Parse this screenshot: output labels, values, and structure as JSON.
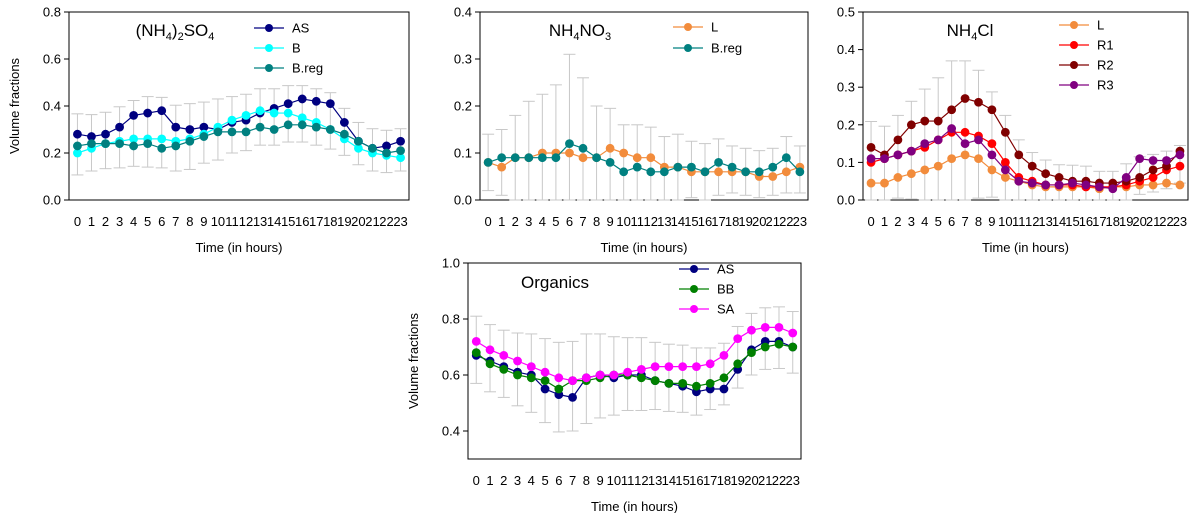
{
  "chart_data": [
    {
      "type": "line",
      "title": "(NH4)2SO4",
      "title_parts": [
        "(NH",
        "4",
        ")",
        "2",
        "SO",
        "4"
      ],
      "xlabel": "Time (in hours)",
      "ylabel": "Volume fractions",
      "x": [
        0,
        1,
        2,
        3,
        4,
        5,
        6,
        7,
        8,
        9,
        10,
        11,
        12,
        13,
        14,
        15,
        16,
        17,
        18,
        19,
        20,
        21,
        22,
        23
      ],
      "x_tick_labels": [
        "0",
        "1",
        "2",
        "3",
        "4",
        "5",
        "6",
        "7",
        "8",
        "9",
        "10",
        "11",
        "12",
        "13",
        "14",
        "15",
        "16",
        "17",
        "18",
        "19",
        "20",
        "21",
        "22",
        "23"
      ],
      "y_ticks": [
        0.0,
        0.2,
        0.4,
        0.6,
        0.8
      ],
      "y_tick_labels": [
        "0.0",
        "0.2",
        "0.4",
        "0.6",
        "0.8"
      ],
      "ylim": [
        0,
        0.8
      ],
      "legend_position": "top-right",
      "series": [
        {
          "name": "AS",
          "color": "#000080",
          "values": [
            0.28,
            0.27,
            0.28,
            0.31,
            0.36,
            0.37,
            0.38,
            0.31,
            0.3,
            0.31,
            0.3,
            0.33,
            0.34,
            0.37,
            0.39,
            0.41,
            0.43,
            0.42,
            0.41,
            0.33,
            0.25,
            0.22,
            0.23,
            0.25
          ]
        },
        {
          "name": "B",
          "color": "#00FFFF",
          "values": [
            0.2,
            0.22,
            0.24,
            0.25,
            0.26,
            0.26,
            0.26,
            0.25,
            0.26,
            0.28,
            0.31,
            0.34,
            0.36,
            0.38,
            0.37,
            0.37,
            0.35,
            0.33,
            0.3,
            0.26,
            0.22,
            0.2,
            0.19,
            0.18
          ]
        },
        {
          "name": "B.reg",
          "color": "#008080",
          "values": [
            0.23,
            0.24,
            0.24,
            0.24,
            0.23,
            0.24,
            0.22,
            0.23,
            0.25,
            0.27,
            0.29,
            0.29,
            0.29,
            0.31,
            0.3,
            0.32,
            0.32,
            0.31,
            0.3,
            0.28,
            0.25,
            0.22,
            0.2,
            0.21
          ]
        }
      ],
      "error": [
        0.13,
        0.12,
        0.12,
        0.13,
        0.14,
        0.15,
        0.15,
        0.14,
        0.14,
        0.13,
        0.13,
        0.12,
        0.12,
        0.12,
        0.12,
        0.12,
        0.12,
        0.12,
        0.12,
        0.1,
        0.09,
        0.09,
        0.09,
        0.09
      ]
    },
    {
      "type": "line",
      "title": "NH4NO3",
      "title_parts": [
        "NH",
        "4",
        "NO",
        "3"
      ],
      "xlabel": "Time (in hours)",
      "ylabel": "",
      "x": [
        0,
        1,
        2,
        3,
        4,
        5,
        6,
        7,
        8,
        9,
        10,
        11,
        12,
        13,
        14,
        15,
        16,
        17,
        18,
        19,
        20,
        21,
        22,
        23
      ],
      "x_tick_labels": [
        "0",
        "1",
        "2",
        "3",
        "4",
        "5",
        "6",
        "7",
        "8",
        "9",
        "10",
        "11",
        "12",
        "13",
        "14",
        "15",
        "16",
        "17",
        "18",
        "19",
        "20",
        "21",
        "22",
        "23"
      ],
      "y_ticks": [
        0.0,
        0.1,
        0.2,
        0.3,
        0.4
      ],
      "y_tick_labels": [
        "0.0",
        "0.1",
        "0.2",
        "0.3",
        "0.4"
      ],
      "ylim": [
        0,
        0.4
      ],
      "legend_position": "top-right",
      "series": [
        {
          "name": "L",
          "color": "#F28C3C",
          "values": [
            0.08,
            0.07,
            0.09,
            0.09,
            0.1,
            0.1,
            0.1,
            0.09,
            0.09,
            0.11,
            0.1,
            0.09,
            0.09,
            0.07,
            0.07,
            0.06,
            0.06,
            0.06,
            0.06,
            0.06,
            0.05,
            0.05,
            0.06,
            0.07
          ]
        },
        {
          "name": "B.reg",
          "color": "#008080",
          "values": [
            0.08,
            0.09,
            0.09,
            0.09,
            0.09,
            0.09,
            0.12,
            0.11,
            0.09,
            0.08,
            0.06,
            0.07,
            0.06,
            0.06,
            0.07,
            0.07,
            0.06,
            0.08,
            0.07,
            0.06,
            0.06,
            0.07,
            0.09,
            0.06
          ]
        }
      ],
      "error": [
        0.06,
        0.07,
        0.09,
        0.12,
        0.13,
        0.15,
        0.2,
        0.16,
        0.11,
        0.1,
        0.08,
        0.08,
        0.08,
        0.07,
        0.07,
        0.06,
        0.06,
        0.06,
        0.05,
        0.05,
        0.05,
        0.05,
        0.06,
        0.05
      ]
    },
    {
      "type": "line",
      "title": "NH4Cl",
      "title_parts": [
        "NH",
        "4",
        "Cl",
        ""
      ],
      "xlabel": "Time (in hours)",
      "ylabel": "",
      "x": [
        0,
        1,
        2,
        3,
        4,
        5,
        6,
        7,
        8,
        9,
        10,
        11,
        12,
        13,
        14,
        15,
        16,
        17,
        18,
        19,
        20,
        21,
        22,
        23
      ],
      "x_tick_labels": [
        "0",
        "1",
        "2",
        "3",
        "4",
        "5",
        "6",
        "7",
        "8",
        "9",
        "10",
        "11",
        "12",
        "13",
        "14",
        "15",
        "16",
        "17",
        "18",
        "19",
        "20",
        "21",
        "22",
        "23"
      ],
      "y_ticks": [
        0.0,
        0.1,
        0.2,
        0.3,
        0.4,
        0.5
      ],
      "y_tick_labels": [
        "0.0",
        "0.1",
        "0.2",
        "0.3",
        "0.4",
        "0.5"
      ],
      "ylim": [
        0,
        0.5
      ],
      "legend_position": "top-right",
      "series": [
        {
          "name": "L",
          "color": "#F28C3C",
          "values": [
            0.045,
            0.045,
            0.06,
            0.07,
            0.08,
            0.09,
            0.11,
            0.12,
            0.11,
            0.08,
            0.06,
            0.05,
            0.04,
            0.035,
            0.035,
            0.035,
            0.035,
            0.03,
            0.035,
            0.035,
            0.04,
            0.04,
            0.045,
            0.04
          ]
        },
        {
          "name": "R1",
          "color": "#FF0000",
          "values": [
            0.1,
            0.11,
            0.12,
            0.13,
            0.14,
            0.16,
            0.18,
            0.18,
            0.17,
            0.15,
            0.1,
            0.06,
            0.05,
            0.04,
            0.04,
            0.04,
            0.035,
            0.035,
            0.035,
            0.04,
            0.05,
            0.06,
            0.08,
            0.09
          ]
        },
        {
          "name": "R2",
          "color": "#800000",
          "values": [
            0.14,
            0.12,
            0.16,
            0.2,
            0.21,
            0.21,
            0.24,
            0.27,
            0.26,
            0.24,
            0.18,
            0.12,
            0.09,
            0.07,
            0.06,
            0.05,
            0.05,
            0.045,
            0.045,
            0.05,
            0.06,
            0.08,
            0.09,
            0.13
          ]
        },
        {
          "name": "R3",
          "color": "#800080",
          "values": [
            0.11,
            0.11,
            0.12,
            0.13,
            0.15,
            0.16,
            0.19,
            0.15,
            0.16,
            0.12,
            0.08,
            0.05,
            0.045,
            0.04,
            0.04,
            0.045,
            0.04,
            0.035,
            0.03,
            0.06,
            0.11,
            0.105,
            0.105,
            0.12
          ]
        }
      ],
      "error": [
        0.11,
        0.1,
        0.11,
        0.13,
        0.15,
        0.17,
        0.19,
        0.19,
        0.17,
        0.14,
        0.12,
        0.09,
        0.07,
        0.06,
        0.05,
        0.05,
        0.05,
        0.04,
        0.04,
        0.05,
        0.05,
        0.05,
        0.05,
        0.05
      ]
    },
    {
      "type": "line",
      "title": "Organics",
      "title_parts": [
        "Organics"
      ],
      "xlabel": "Time (in hours)",
      "ylabel": "Volume fractions",
      "x": [
        0,
        1,
        2,
        3,
        4,
        5,
        6,
        7,
        8,
        9,
        10,
        11,
        12,
        13,
        14,
        15,
        16,
        17,
        18,
        19,
        20,
        21,
        22,
        23
      ],
      "x_tick_labels": [
        "0",
        "1",
        "2",
        "3",
        "4",
        "5",
        "6",
        "7",
        "8",
        "9",
        "10",
        "11",
        "12",
        "13",
        "14",
        "15",
        "16",
        "17",
        "18",
        "19",
        "20",
        "21",
        "22",
        "23"
      ],
      "y_ticks": [
        0.4,
        0.6,
        0.8,
        1.0
      ],
      "y_tick_labels": [
        "0.4",
        "0.6",
        "0.8",
        "1.0"
      ],
      "ylim": [
        0.3,
        1.0
      ],
      "legend_position": "top-right",
      "series": [
        {
          "name": "AS",
          "color": "#000080",
          "values": [
            0.67,
            0.65,
            0.63,
            0.61,
            0.6,
            0.55,
            0.53,
            0.52,
            0.59,
            0.6,
            0.59,
            0.6,
            0.6,
            0.58,
            0.57,
            0.56,
            0.54,
            0.55,
            0.55,
            0.62,
            0.69,
            0.72,
            0.72,
            0.7
          ]
        },
        {
          "name": "BB",
          "color": "#008000",
          "values": [
            0.68,
            0.64,
            0.62,
            0.6,
            0.59,
            0.58,
            0.55,
            0.58,
            0.58,
            0.59,
            0.6,
            0.6,
            0.59,
            0.58,
            0.57,
            0.57,
            0.56,
            0.57,
            0.59,
            0.64,
            0.68,
            0.7,
            0.71,
            0.7
          ]
        },
        {
          "name": "SA",
          "color": "#FF00FF",
          "values": [
            0.72,
            0.69,
            0.67,
            0.65,
            0.63,
            0.61,
            0.59,
            0.58,
            0.59,
            0.6,
            0.6,
            0.61,
            0.62,
            0.63,
            0.63,
            0.63,
            0.63,
            0.64,
            0.67,
            0.73,
            0.76,
            0.77,
            0.77,
            0.75
          ]
        }
      ],
      "error": [
        0.12,
        0.12,
        0.12,
        0.13,
        0.14,
        0.15,
        0.16,
        0.16,
        0.16,
        0.15,
        0.14,
        0.13,
        0.13,
        0.12,
        0.12,
        0.12,
        0.12,
        0.11,
        0.11,
        0.11,
        0.11,
        0.11,
        0.11,
        0.11
      ]
    }
  ]
}
